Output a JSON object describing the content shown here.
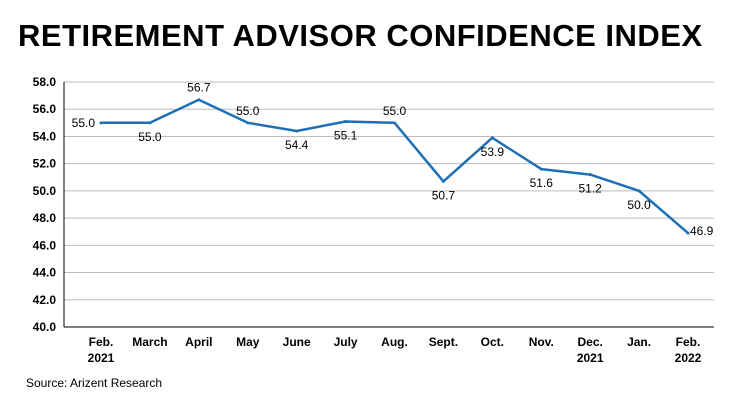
{
  "chart_data": {
    "type": "line",
    "title": "RETIREMENT ADVISOR CONFIDENCE INDEX",
    "source": "Source: Arizent Research",
    "categories": [
      [
        "Feb.",
        "2021"
      ],
      [
        "March"
      ],
      [
        "April"
      ],
      [
        "May"
      ],
      [
        "June"
      ],
      [
        "July"
      ],
      [
        "Aug."
      ],
      [
        "Sept."
      ],
      [
        "Oct."
      ],
      [
        "Nov."
      ],
      [
        "Dec.",
        "2021"
      ],
      [
        "Jan."
      ],
      [
        "Feb.",
        "2022"
      ]
    ],
    "values": [
      55.0,
      55.0,
      56.7,
      55.0,
      54.4,
      55.1,
      55.0,
      50.7,
      53.9,
      51.6,
      51.2,
      50.0,
      46.9
    ],
    "data_labels": [
      "55.0",
      "55.0",
      "56.7",
      "55.0",
      "54.4",
      "55.1",
      "55.0",
      "50.7",
      "53.9",
      "51.6",
      "51.2",
      "50.0",
      "46.9"
    ],
    "label_position": [
      "left",
      "below",
      "above",
      "above",
      "below",
      "below",
      "above",
      "below",
      "below",
      "below",
      "below",
      "below",
      "right"
    ],
    "yticks": [
      "40.0",
      "42.0",
      "44.0",
      "46.0",
      "48.0",
      "50.0",
      "52.0",
      "54.0",
      "56.0",
      "58.0"
    ],
    "ylim": [
      40,
      58
    ],
    "grid": true,
    "line_color": "#1f6fb5",
    "grid_color": "#bdbdbd"
  }
}
